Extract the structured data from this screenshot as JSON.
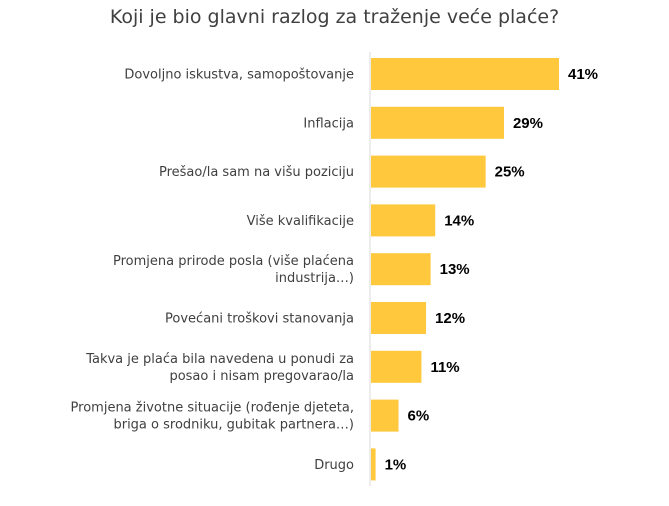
{
  "chart_data": {
    "type": "bar",
    "orientation": "horizontal",
    "title": "Koji je bio glavni razlog za traženje veće plaće?",
    "categories": [
      [
        "Dovoljno iskustva, samopoštovanje"
      ],
      [
        "Inflacija"
      ],
      [
        "Prešao/la sam na višu poziciju"
      ],
      [
        "Više kvalifikacije"
      ],
      [
        "Promjena prirode posla (više plaćena",
        "industrija…)"
      ],
      [
        "Povećani troškovi stanovanja"
      ],
      [
        "Takva je plaća bila navedena u ponudi za",
        "posao i nisam pregovarao/la"
      ],
      [
        "Promjena životne situacije (rođenje djeteta,",
        "briga o srodniku, gubitak partnera…)"
      ],
      [
        "Drugo"
      ]
    ],
    "values": [
      41,
      29,
      25,
      14,
      13,
      12,
      11,
      6,
      1
    ],
    "value_labels": [
      "41%",
      "29%",
      "25%",
      "14%",
      "13%",
      "12%",
      "11%",
      "6%",
      "1%"
    ],
    "unit": "%",
    "xlim": [
      0,
      41
    ],
    "grid": false,
    "bar_color": "#FFC83D",
    "axis_color": "#D9D9D9"
  }
}
